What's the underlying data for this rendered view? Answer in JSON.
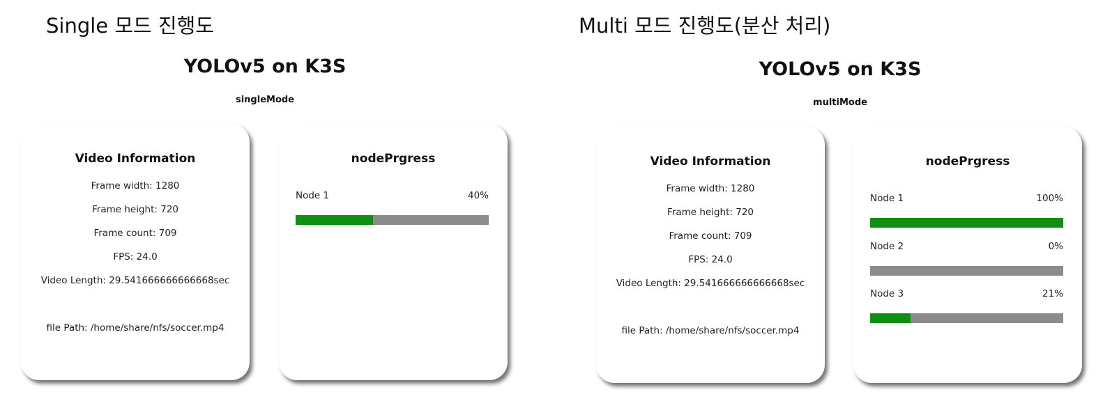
{
  "captions": {
    "single": "Single 모드 진행도",
    "multi": "Multi 모드 진행도(분산 처리)"
  },
  "panels": [
    {
      "app_title": "YOLOv5 on K3S",
      "mode": "singleMode",
      "video_info": {
        "title": "Video Information",
        "frame_width": "Frame width: 1280",
        "frame_height": "Frame height: 720",
        "frame_count": "Frame count: 709",
        "fps": "FPS: 24.0",
        "video_length": "Video Length: 29.541666666666668sec",
        "file_path": "file Path: /home/share/nfs/soccer.mp4"
      },
      "progress": {
        "title": "nodePrgress",
        "nodes": [
          {
            "label": "Node 1",
            "percent_text": "40%",
            "value": 40
          }
        ]
      }
    },
    {
      "app_title": "YOLOv5 on K3S",
      "mode": "multiMode",
      "video_info": {
        "title": "Video Information",
        "frame_width": "Frame width: 1280",
        "frame_height": "Frame height: 720",
        "frame_count": "Frame count: 709",
        "fps": "FPS: 24.0",
        "video_length": "Video Length: 29.541666666666668sec",
        "file_path": "file Path: /home/share/nfs/soccer.mp4"
      },
      "progress": {
        "title": "nodePrgress",
        "nodes": [
          {
            "label": "Node 1",
            "percent_text": "100%",
            "value": 100
          },
          {
            "label": "Node 2",
            "percent_text": "0%",
            "value": 0
          },
          {
            "label": "Node 3",
            "percent_text": "21%",
            "value": 21
          }
        ]
      }
    }
  ],
  "colors": {
    "bar_fill": "#109010",
    "bar_track": "#8c8c8c"
  }
}
